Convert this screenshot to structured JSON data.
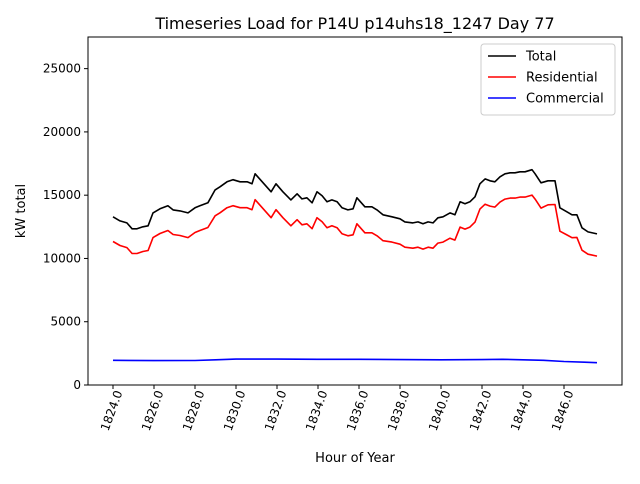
{
  "chart_data": {
    "type": "line",
    "title": "Timeseries Load for P14U p14uhs18_1247  Day 77",
    "xlabel": "Hour of Year",
    "ylabel": "kW total",
    "xlim": [
      1822.78,
      1848.83
    ],
    "ylim": [
      0,
      27500
    ],
    "xticks": [
      1824,
      1826,
      1828,
      1830,
      1832,
      1834,
      1836,
      1838,
      1840,
      1842,
      1844,
      1846
    ],
    "xtick_labels": [
      "1824.0",
      "1826.0",
      "1828.0",
      "1830.0",
      "1832.0",
      "1834.0",
      "1836.0",
      "1838.0",
      "1840.0",
      "1842.0",
      "1844.0",
      "1846.0"
    ],
    "yticks": [
      0,
      5000,
      10000,
      15000,
      20000,
      25000
    ],
    "ytick_labels": [
      "0",
      "5000",
      "10000",
      "15000",
      "20000",
      "25000"
    ],
    "grid": false,
    "legend_position": "top-right",
    "x": [
      1824.0,
      1824.34,
      1824.68,
      1824.93,
      1825.17,
      1825.46,
      1825.71,
      1825.95,
      1826.29,
      1826.68,
      1826.93,
      1827.27,
      1827.66,
      1828.0,
      1828.24,
      1828.63,
      1828.98,
      1829.22,
      1829.56,
      1829.85,
      1830.2,
      1830.54,
      1830.78,
      1830.93,
      1831.32,
      1831.71,
      1831.95,
      1832.29,
      1832.68,
      1832.98,
      1833.22,
      1833.46,
      1833.71,
      1833.95,
      1834.2,
      1834.44,
      1834.68,
      1834.93,
      1835.17,
      1835.46,
      1835.71,
      1835.9,
      1836.29,
      1836.63,
      1836.88,
      1837.17,
      1837.61,
      1838.0,
      1838.24,
      1838.63,
      1838.88,
      1839.12,
      1839.37,
      1839.61,
      1839.85,
      1840.1,
      1840.44,
      1840.68,
      1840.93,
      1841.17,
      1841.41,
      1841.66,
      1841.9,
      1842.15,
      1842.39,
      1842.63,
      1842.88,
      1843.12,
      1843.37,
      1843.61,
      1843.85,
      1844.1,
      1844.44,
      1844.59,
      1844.88,
      1845.22,
      1845.56,
      1845.8,
      1846.15,
      1846.39,
      1846.63,
      1846.88,
      1847.17,
      1847.61
    ],
    "series": [
      {
        "name": "Total",
        "color": "#000000",
        "values": [
          13290,
          12970,
          12810,
          12340,
          12340,
          12500,
          12580,
          13600,
          13920,
          14160,
          13840,
          13760,
          13600,
          14000,
          14160,
          14400,
          15420,
          15660,
          16060,
          16220,
          16060,
          16060,
          15900,
          16690,
          15980,
          15270,
          15900,
          15270,
          14630,
          15110,
          14710,
          14790,
          14400,
          15270,
          14950,
          14480,
          14630,
          14480,
          14000,
          13840,
          13920,
          14790,
          14080,
          14080,
          13840,
          13450,
          13290,
          13130,
          12890,
          12810,
          12890,
          12740,
          12890,
          12810,
          13210,
          13290,
          13600,
          13450,
          14480,
          14320,
          14480,
          14870,
          15900,
          16290,
          16140,
          16060,
          16450,
          16690,
          16770,
          16770,
          16850,
          16850,
          17010,
          16690,
          15980,
          16140,
          16140,
          14000,
          13680,
          13450,
          13450,
          12420,
          12100,
          11940
        ]
      },
      {
        "name": "Residential",
        "color": "#ff0000",
        "values": [
          11340,
          11020,
          10860,
          10390,
          10390,
          10550,
          10630,
          11650,
          11970,
          12210,
          11890,
          11810,
          11650,
          12050,
          12210,
          12450,
          13370,
          13610,
          14010,
          14170,
          14010,
          14010,
          13850,
          14640,
          13930,
          13220,
          13850,
          13220,
          12580,
          13060,
          12660,
          12740,
          12350,
          13220,
          12900,
          12430,
          12580,
          12430,
          11950,
          11790,
          11870,
          12740,
          12030,
          12030,
          11790,
          11400,
          11290,
          11130,
          10890,
          10810,
          10890,
          10740,
          10890,
          10810,
          11210,
          11290,
          11600,
          11450,
          12480,
          12320,
          12480,
          12870,
          13900,
          14290,
          14140,
          14060,
          14450,
          14690,
          14770,
          14770,
          14850,
          14850,
          15010,
          14690,
          13980,
          14240,
          14260,
          12150,
          11850,
          11640,
          11660,
          10650,
          10340,
          10190
        ]
      },
      {
        "name": "Commercial",
        "color": "#0000ff",
        "x": [
          1824,
          1826,
          1828,
          1829,
          1830,
          1832,
          1834,
          1836,
          1838,
          1840,
          1842,
          1843,
          1844,
          1845,
          1846,
          1847,
          1847.61
        ],
        "values": [
          1950,
          1930,
          1940,
          1990,
          2050,
          2050,
          2030,
          2030,
          2010,
          1990,
          2010,
          2030,
          1990,
          1950,
          1860,
          1800,
          1760
        ]
      }
    ]
  }
}
